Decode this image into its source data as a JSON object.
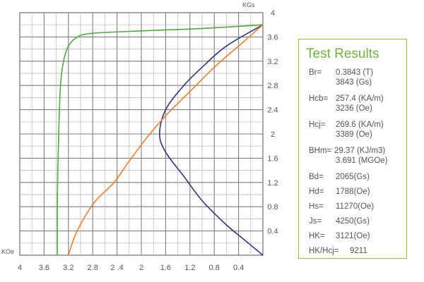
{
  "chart_data": {
    "type": "line",
    "x_axis": {
      "unit_label": "KOe",
      "min": 0,
      "max": 4,
      "reversed": true,
      "ticks": [
        "4",
        "3.6",
        "3.2",
        "2.8",
        "2 .4",
        "2",
        "1.6",
        "1.2",
        "0.8",
        "0.4"
      ],
      "tick_values": [
        4,
        3.6,
        3.2,
        2.8,
        2.4,
        2,
        1.6,
        1.2,
        0.8,
        0.4
      ]
    },
    "y_axis": {
      "unit_label": "KGs",
      "min": 0,
      "max": 4,
      "position": "right",
      "ticks": [
        "4",
        "3.6",
        "3.2",
        "2.8",
        "2.4",
        "2",
        "1.6",
        "1.2",
        "0.8",
        "0.4"
      ],
      "tick_values": [
        4,
        3.6,
        3.2,
        2.8,
        2.4,
        2,
        1.6,
        1.2,
        0.8,
        0.4
      ]
    },
    "grid": true,
    "series": [
      {
        "color": "#4aac3c",
        "points": [
          [
            3.38,
            0
          ],
          [
            3.38,
            1.0
          ],
          [
            3.36,
            2.0
          ],
          [
            3.33,
            2.8
          ],
          [
            3.28,
            3.2
          ],
          [
            3.2,
            3.45
          ],
          [
            3.05,
            3.6
          ],
          [
            2.8,
            3.66
          ],
          [
            2.0,
            3.7
          ],
          [
            1.0,
            3.74
          ],
          [
            0.0,
            3.8
          ]
        ]
      },
      {
        "color": "#2e3580",
        "points": [
          [
            0.0,
            0
          ],
          [
            0.3,
            0.25
          ],
          [
            0.6,
            0.5
          ],
          [
            1.0,
            0.9
          ],
          [
            1.3,
            1.3
          ],
          [
            1.6,
            1.7
          ],
          [
            1.7,
            2.0
          ],
          [
            1.6,
            2.4
          ],
          [
            1.3,
            2.8
          ],
          [
            1.0,
            3.1
          ],
          [
            0.6,
            3.45
          ],
          [
            0.0,
            3.8
          ]
        ]
      },
      {
        "color": "#f07d2c",
        "points": [
          [
            3.2,
            0
          ],
          [
            3.1,
            0.3
          ],
          [
            2.95,
            0.6
          ],
          [
            2.75,
            0.9
          ],
          [
            2.45,
            1.2
          ],
          [
            2.2,
            1.55
          ],
          [
            1.9,
            1.95
          ],
          [
            1.6,
            2.3
          ],
          [
            1.2,
            2.7
          ],
          [
            0.8,
            3.1
          ],
          [
            0.4,
            3.45
          ],
          [
            0.0,
            3.8
          ]
        ]
      }
    ]
  },
  "results": {
    "title": "Test Results",
    "rows": [
      {
        "label": "Br=",
        "v1": "0.3843 (T)",
        "v2": "3843 (Gs)"
      },
      {
        "label": "Hcb=",
        "v1": "257.4 (KA/m)",
        "v2": "3236 (Oe)"
      },
      {
        "label": "Hcj=",
        "v1": "269.6 (KA/m)",
        "v2": "3389 (Oe)"
      },
      {
        "label": "BHm=",
        "v1": "29.37 (KJ/m3)",
        "v2": "3.691 (MGOe)"
      },
      {
        "label": "Bd=",
        "v1": "2065(Gs)",
        "v2": ""
      },
      {
        "label": "Hd=",
        "v1": "1788(Oe)",
        "v2": ""
      },
      {
        "label": "Hs=",
        "v1": "11270(Oe)",
        "v2": ""
      },
      {
        "label": "Js=",
        "v1": "4250(Gs)",
        "v2": ""
      },
      {
        "label": "HK=",
        "v1": "3121(Oe)",
        "v2": ""
      },
      {
        "label": "HK/Hcj=",
        "v1": "9211",
        "v2": ""
      }
    ]
  }
}
